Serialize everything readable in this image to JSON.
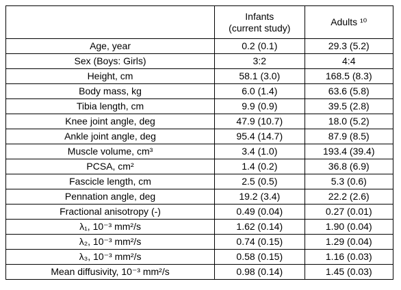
{
  "table": {
    "columns": [
      [
        "Infants",
        "(current study)"
      ],
      [
        "Adults ¹⁰"
      ]
    ],
    "rows": [
      [
        "Age, year",
        "0.2 (0.1)",
        "29.3 (5.2)"
      ],
      [
        "Sex (Boys: Girls)",
        "3:2",
        "4:4"
      ],
      [
        "Height, cm",
        "58.1 (3.0)",
        "168.5 (8.3)"
      ],
      [
        "Body mass, kg",
        "6.0 (1.4)",
        "63.6 (5.8)"
      ],
      [
        "Tibia length, cm",
        "9.9 (0.9)",
        "39.5 (2.8)"
      ],
      [
        "Knee joint angle, deg",
        "47.9 (10.7)",
        "18.0 (5.2)"
      ],
      [
        "Ankle joint angle, deg",
        "95.4 (14.7)",
        "87.9 (8.5)"
      ],
      [
        "Muscle volume, cm³",
        "3.4 (1.0)",
        "193.4 (39.4)"
      ],
      [
        "PCSA, cm²",
        "1.4 (0.2)",
        "36.8 (6.9)"
      ],
      [
        "Fascicle length, cm",
        "2.5 (0.5)",
        "5.3 (0.6)"
      ],
      [
        "Pennation angle, deg",
        "19.2 (3.4)",
        "22.2 (2.6)"
      ],
      [
        "Fractional anisotropy (-)",
        "0.49 (0.04)",
        "0.27 (0.01)"
      ],
      [
        "λ₁, 10⁻³ mm²/s",
        "1.62 (0.14)",
        "1.90 (0.04)"
      ],
      [
        "λ₂, 10⁻³ mm²/s",
        "0.74 (0.15)",
        "1.29 (0.04)"
      ],
      [
        "λ₃, 10⁻³ mm²/s",
        "0.58 (0.15)",
        "1.16 (0.03)"
      ],
      [
        "Mean diffusivity, 10⁻³ mm²/s",
        "0.98 (0.14)",
        "1.45 (0.03)"
      ]
    ]
  }
}
